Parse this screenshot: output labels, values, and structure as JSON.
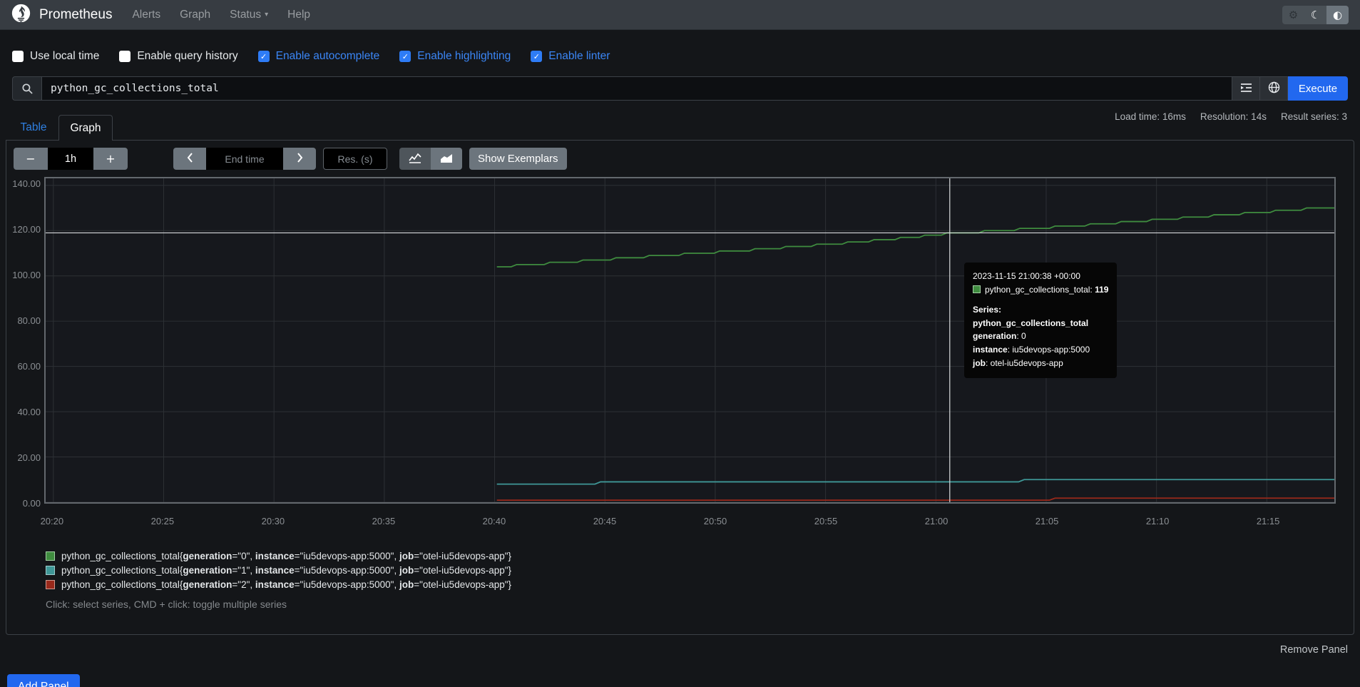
{
  "navbar": {
    "brand": "Prometheus",
    "links": [
      {
        "label": "Alerts",
        "caret": false
      },
      {
        "label": "Graph",
        "caret": false
      },
      {
        "label": "Status",
        "caret": true
      },
      {
        "label": "Help",
        "caret": false
      }
    ],
    "caret_glyph": "▾",
    "controls": [
      {
        "name": "settings-button",
        "icon": "gear-icon",
        "glyph": "⚙",
        "active": false
      },
      {
        "name": "dark-theme-button",
        "icon": "moon-icon",
        "glyph": "☾",
        "active": false
      },
      {
        "name": "auto-theme-button",
        "icon": "half-circle-icon",
        "glyph": "◐",
        "active": true
      }
    ]
  },
  "options": {
    "check_glyph": "✓",
    "items": [
      {
        "label": "Use local time",
        "checked": false
      },
      {
        "label": "Enable query history",
        "checked": false
      },
      {
        "label": "Enable autocomplete",
        "checked": true
      },
      {
        "label": "Enable highlighting",
        "checked": true
      },
      {
        "label": "Enable linter",
        "checked": true
      }
    ]
  },
  "query": {
    "value": "python_gc_collections_total",
    "execute_label": "Execute"
  },
  "stats": {
    "load_time": "Load time: 16ms",
    "resolution": "Resolution: 14s",
    "result_series": "Result series: 3"
  },
  "tabs": [
    {
      "label": "Table",
      "active": false
    },
    {
      "label": "Graph",
      "active": true
    }
  ],
  "graph_controls": {
    "minus": "−",
    "plus": "+",
    "range": "1h",
    "end_time_placeholder": "End time",
    "res_placeholder": "Res. (s)",
    "show_exemplars": "Show Exemplars"
  },
  "tooltip": {
    "time": "2023-11-15 21:00:38 +00:00",
    "metric": "python_gc_collections_total:",
    "value": "119",
    "color": "#3f8c3f",
    "border": "#a3cfa3",
    "series_heading": "Series:",
    "series_metric": "python_gc_collections_total",
    "labels": [
      {
        "k": "generation",
        "v": "0"
      },
      {
        "k": "instance",
        "v": "iu5devops-app:5000"
      },
      {
        "k": "job",
        "v": "otel-iu5devops-app"
      }
    ]
  },
  "legend": {
    "items": [
      {
        "metric": "python_gc_collections_total",
        "fill": "#3f8c3f",
        "border": "#a3cfa3",
        "labels": [
          {
            "k": "generation",
            "v": "0"
          },
          {
            "k": "instance",
            "v": "iu5devops-app:5000"
          },
          {
            "k": "job",
            "v": "otel-iu5devops-app"
          }
        ]
      },
      {
        "metric": "python_gc_collections_total",
        "fill": "#3f9797",
        "border": "#a0cdcd",
        "labels": [
          {
            "k": "generation",
            "v": "1"
          },
          {
            "k": "instance",
            "v": "iu5devops-app:5000"
          },
          {
            "k": "job",
            "v": "otel-iu5devops-app"
          }
        ]
      },
      {
        "metric": "python_gc_collections_total",
        "fill": "#99291b",
        "border": "#cf9a90",
        "labels": [
          {
            "k": "generation",
            "v": "2"
          },
          {
            "k": "instance",
            "v": "iu5devops-app:5000"
          },
          {
            "k": "job",
            "v": "otel-iu5devops-app"
          }
        ]
      }
    ]
  },
  "footer": {
    "hint": "Click: select series, CMD + click: toggle multiple series",
    "remove_panel": "Remove Panel",
    "add_panel": "Add Panel"
  },
  "chart_data": {
    "type": "line",
    "x_axis": "time of day (HH:MM)",
    "y_axis": "python_gc_collections_total",
    "x_range": [
      19.65,
      78.06
    ],
    "x_range_unit": "minutes after 20:00",
    "y_range": [
      0,
      143.1
    ],
    "grid": true,
    "legend_position": "bottom",
    "x_ticks": [
      {
        "t": 20,
        "label": "20:20"
      },
      {
        "t": 25,
        "label": "20:25"
      },
      {
        "t": 30,
        "label": "20:30"
      },
      {
        "t": 35,
        "label": "20:35"
      },
      {
        "t": 40,
        "label": "20:40"
      },
      {
        "t": 45,
        "label": "20:45"
      },
      {
        "t": 50,
        "label": "20:50"
      },
      {
        "t": 55,
        "label": "20:55"
      },
      {
        "t": 60,
        "label": "21:00"
      },
      {
        "t": 65,
        "label": "21:05"
      },
      {
        "t": 70,
        "label": "21:10"
      },
      {
        "t": 75,
        "label": "21:15"
      }
    ],
    "y_ticks": [
      {
        "v": 0,
        "label": "0.00"
      },
      {
        "v": 20,
        "label": "20.00"
      },
      {
        "v": 40,
        "label": "40.00"
      },
      {
        "v": 60,
        "label": "60.00"
      },
      {
        "v": 80,
        "label": "80.00"
      },
      {
        "v": 100,
        "label": "100.00"
      },
      {
        "v": 120,
        "label": "120.00"
      },
      {
        "v": 140,
        "label": "140.00"
      }
    ],
    "series": [
      {
        "name": "python_gc_collections_total{generation=\"0\", instance=\"iu5devops-app:5000\", job=\"otel-iu5devops-app\"}",
        "color": "#3f8c3f",
        "steps": [
          [
            40.1,
            104
          ],
          [
            41.0,
            105
          ],
          [
            42.5,
            106
          ],
          [
            44.0,
            107
          ],
          [
            45.5,
            108
          ],
          [
            47.0,
            109
          ],
          [
            48.6,
            110
          ],
          [
            50.2,
            111
          ],
          [
            51.8,
            112
          ],
          [
            53.2,
            113
          ],
          [
            54.6,
            114
          ],
          [
            56.0,
            115
          ],
          [
            57.2,
            116
          ],
          [
            58.4,
            117
          ],
          [
            59.5,
            118
          ],
          [
            60.5,
            119
          ],
          [
            62.2,
            120
          ],
          [
            63.8,
            121
          ],
          [
            65.4,
            122
          ],
          [
            67.0,
            123
          ],
          [
            68.4,
            124
          ],
          [
            69.8,
            125
          ],
          [
            71.2,
            126
          ],
          [
            72.6,
            127
          ],
          [
            74.0,
            128
          ],
          [
            75.4,
            129
          ],
          [
            76.8,
            130
          ]
        ],
        "end": 78.06
      },
      {
        "name": "python_gc_collections_total{generation=\"1\", instance=\"iu5devops-app:5000\", job=\"otel-iu5devops-app\"}",
        "color": "#3f9797",
        "steps": [
          [
            40.1,
            8
          ],
          [
            44.8,
            9
          ],
          [
            64.0,
            10
          ]
        ],
        "end": 78.06
      },
      {
        "name": "python_gc_collections_total{generation=\"2\", instance=\"iu5devops-app:5000\", job=\"otel-iu5devops-app\"}",
        "color": "#99291b",
        "steps": [
          [
            40.1,
            0.9
          ],
          [
            65.4,
            1.8
          ]
        ],
        "end": 78.06
      }
    ],
    "crosshair": {
      "t": 60.63,
      "value": 119
    }
  }
}
